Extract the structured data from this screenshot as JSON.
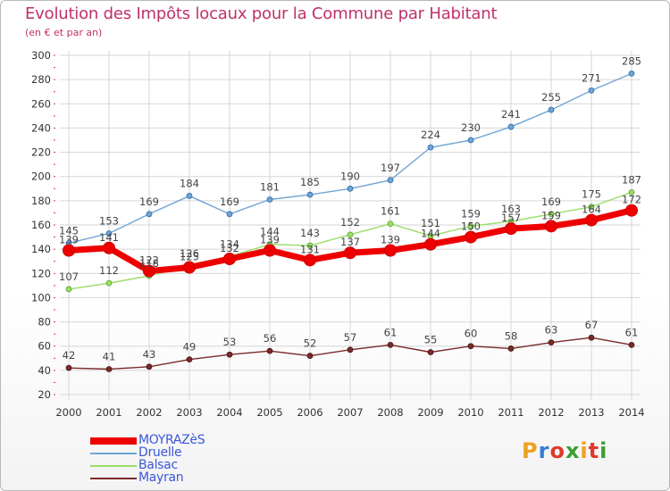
{
  "header": {
    "title": "Evolution des Impôts locaux pour la Commune par Habitant",
    "subtitle": "(en € et par an)"
  },
  "logo": {
    "text": "Proxiti",
    "colors": [
      "#f0a020",
      "#3a7ad8",
      "#e03a2a",
      "#3aa030",
      "#f0a020",
      "#e03a2a",
      "#3aa030"
    ]
  },
  "colors": {
    "title": "#c0306a",
    "grid": "#d6d6d6",
    "axis_tick_text": "#333333",
    "legend_text": "#3a59d8",
    "tick_mark": "#d8305a"
  },
  "chart_data": {
    "type": "line",
    "title": "Evolution des Impôts locaux pour la Commune par Habitant",
    "subtitle": "(en € et par an)",
    "x": [
      "2000",
      "2001",
      "2002",
      "2003",
      "2004",
      "2005",
      "2006",
      "2007",
      "2008",
      "2009",
      "2010",
      "2011",
      "2012",
      "2013",
      "2014"
    ],
    "ylim": [
      20,
      300
    ],
    "yticks": [
      20,
      40,
      60,
      80,
      100,
      120,
      140,
      160,
      180,
      200,
      220,
      240,
      260,
      280,
      300
    ],
    "grid": true,
    "legend_position": "bottom-left",
    "series": [
      {
        "name": "MOYRAZèS",
        "color": "#ee0000",
        "values": [
          139,
          141,
          122,
          125,
          132,
          139,
          131,
          137,
          139,
          144,
          150,
          157,
          159,
          164,
          172
        ],
        "labels": [
          "139",
          "141",
          "122",
          "125",
          "132",
          "139",
          "131",
          "137",
          "139",
          "144",
          "150",
          "157",
          "159",
          "164",
          "172"
        ]
      },
      {
        "name": "Druelle",
        "color": "#6fa4d4",
        "values": [
          145,
          153,
          169,
          184,
          169,
          181,
          185,
          190,
          197,
          224,
          230,
          241,
          255,
          271,
          285
        ],
        "labels": [
          "145",
          "153",
          "169",
          "184",
          "169",
          "181",
          "185",
          "190",
          "197",
          "224",
          "230",
          "241",
          "255",
          "271",
          "285"
        ]
      },
      {
        "name": "Balsac",
        "color": "#99dd66",
        "values": [
          107,
          112,
          118,
          126,
          134,
          144,
          143,
          152,
          161,
          151,
          159,
          163,
          169,
          175,
          187
        ],
        "labels": [
          "107",
          "112",
          "118",
          "126",
          "134",
          "144",
          "143",
          "152",
          "161",
          "151",
          "159",
          "163",
          "169",
          "175",
          "187"
        ]
      },
      {
        "name": "Mayran",
        "color": "#7a2a2a",
        "values": [
          42,
          41,
          43,
          49,
          53,
          56,
          52,
          57,
          61,
          55,
          60,
          58,
          63,
          67,
          61
        ],
        "labels": [
          "42",
          "41",
          "43",
          "49",
          "53",
          "56",
          "52",
          "57",
          "61",
          "55",
          "60",
          "58",
          "63",
          "67",
          "61"
        ]
      }
    ]
  }
}
